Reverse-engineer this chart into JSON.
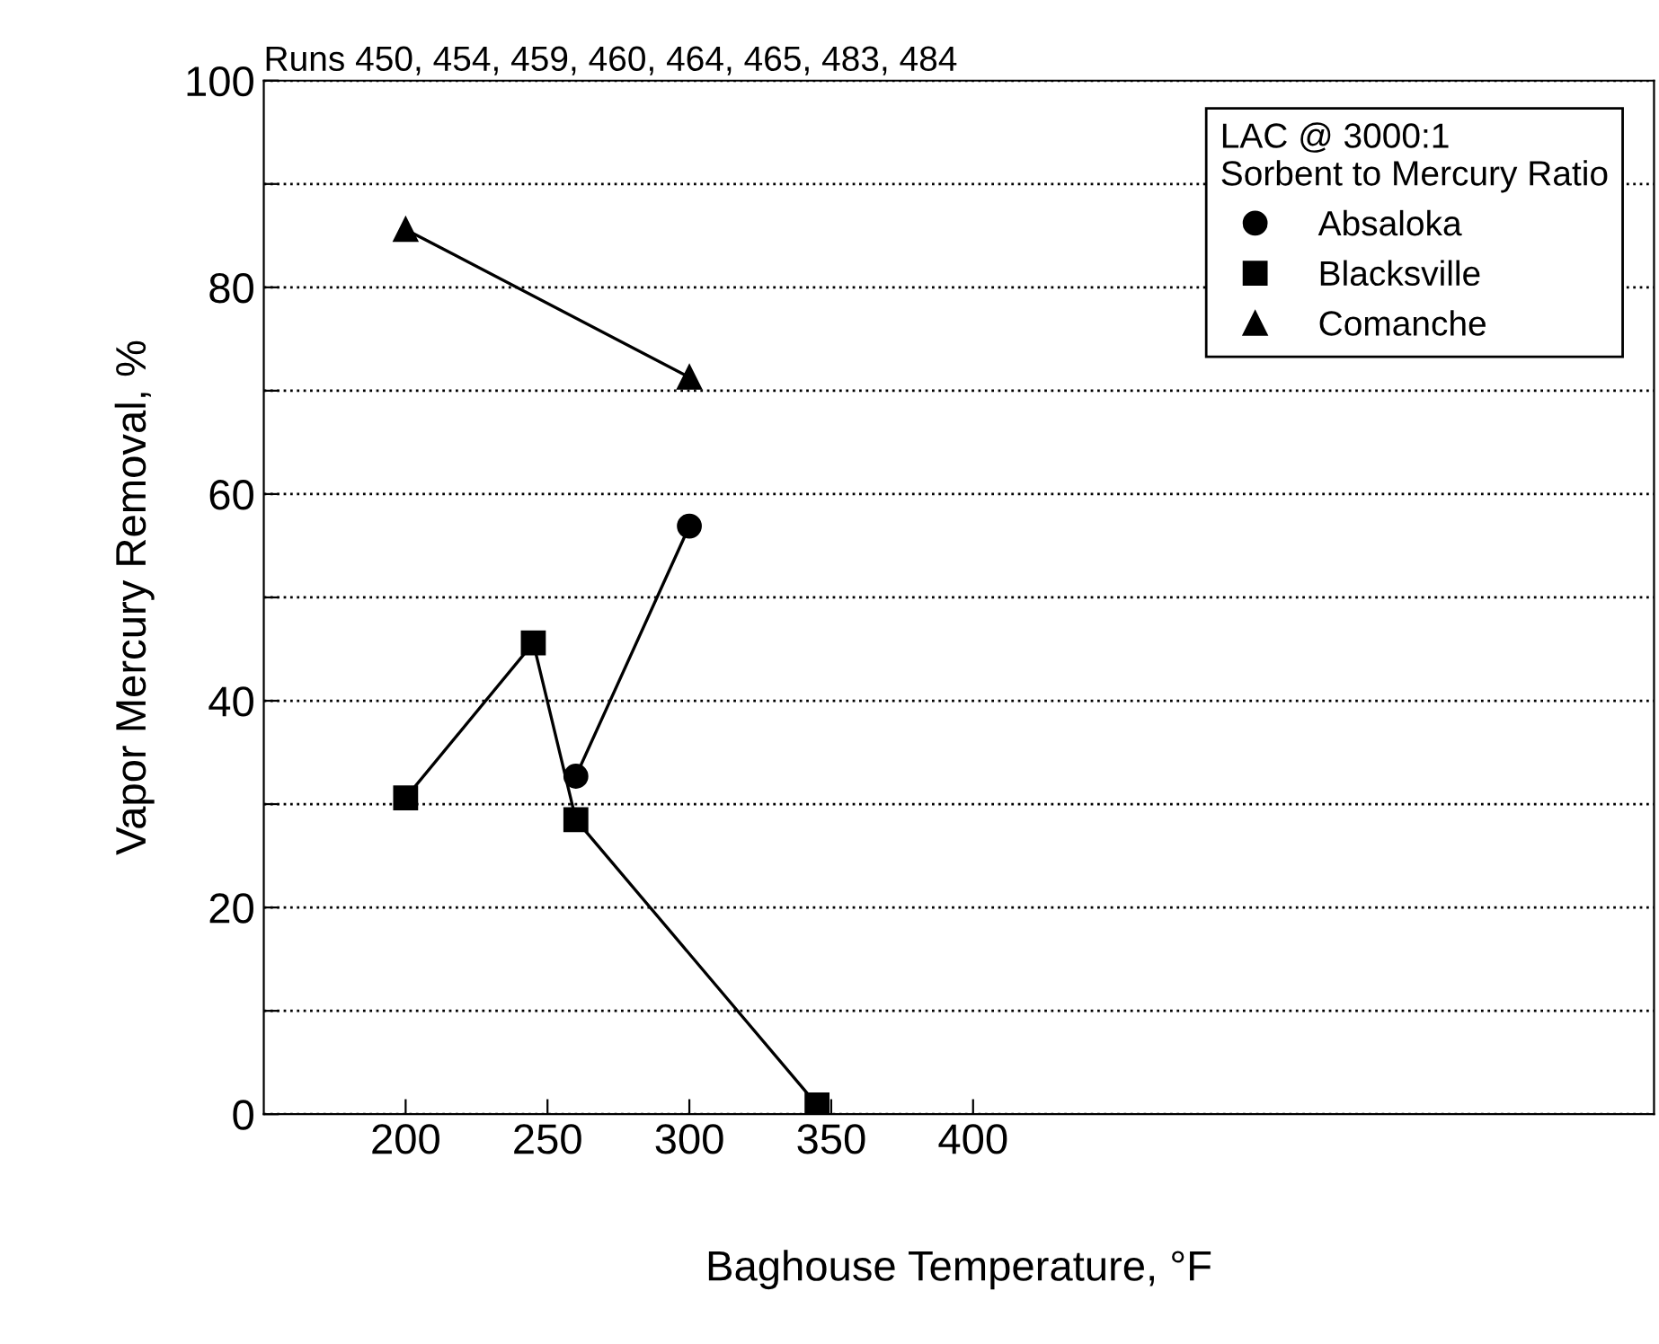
{
  "chart_data": {
    "type": "line",
    "title": "Runs 450, 454, 459, 460, 464, 465, 483, 484",
    "xlabel": "Baghouse Temperature, °F",
    "ylabel": "Vapor Mercury Removal, %",
    "legend_title": "LAC @ 3000:1\nSorbent to Mercury Ratio",
    "xlim": [
      150,
      640
    ],
    "xticks": [
      200,
      250,
      300,
      350,
      400
    ],
    "ylim": [
      0,
      100
    ],
    "yticks": [
      0,
      {
        "value": 10,
        "label": null
      },
      20,
      {
        "value": 30,
        "label": null
      },
      40,
      {
        "value": 50,
        "label": null
      },
      60,
      {
        "value": 70,
        "label": null
      },
      80,
      {
        "value": 90,
        "label": null
      },
      100
    ],
    "grid": "y",
    "legend": "top right",
    "line_style": "solid",
    "series": [
      {
        "name": "Absaloka",
        "color": "#000000",
        "marker": "circle",
        "x": [
          260,
          300
        ],
        "values": [
          32.7,
          56.9
        ]
      },
      {
        "name": "Blacksville",
        "color": "#000000",
        "marker": "square",
        "x": [
          200,
          245,
          260,
          345
        ],
        "values": [
          30.6,
          45.6,
          28.5,
          0.9
        ]
      },
      {
        "name": "Comanche",
        "color": "#000000",
        "marker": "triangle",
        "x": [
          200,
          300
        ],
        "values": [
          85.6,
          71.3
        ]
      }
    ]
  }
}
